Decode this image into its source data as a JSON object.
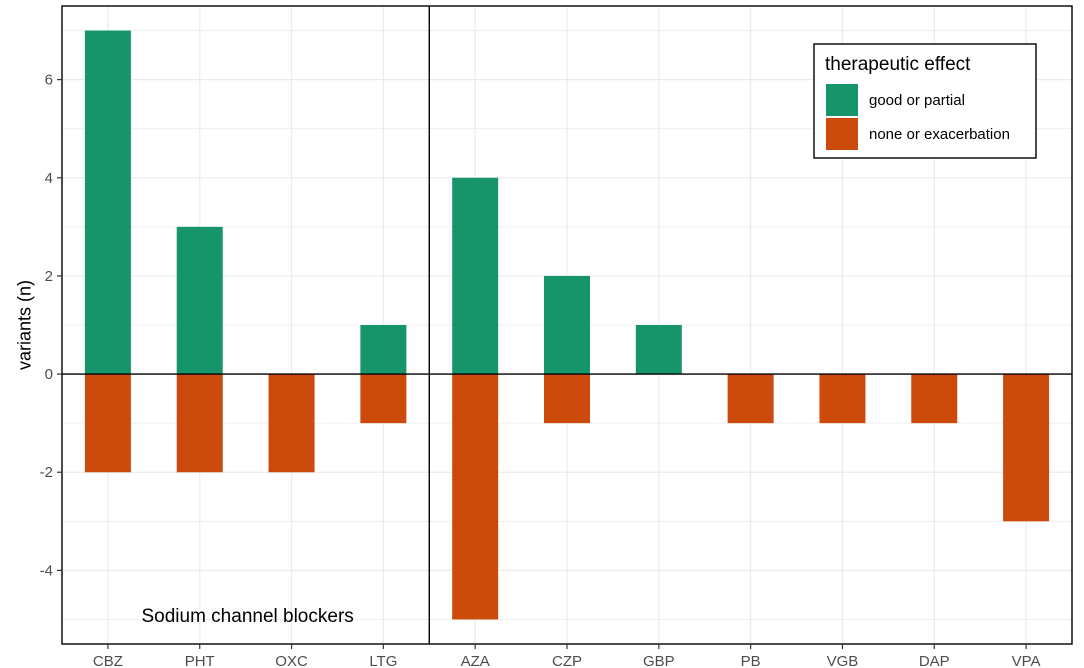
{
  "chart_data": {
    "type": "bar",
    "stacked_diverging": true,
    "categories": [
      "CBZ",
      "PHT",
      "OXC",
      "LTG",
      "AZA",
      "CZP",
      "GBP",
      "PB",
      "VGB",
      "DAP",
      "VPA"
    ],
    "series": [
      {
        "name": "good or partial",
        "color": "#16956a",
        "values": [
          7,
          3,
          0,
          1,
          4,
          2,
          1,
          0,
          0,
          0,
          0
        ]
      },
      {
        "name": "none or exacerbation",
        "color": "#cc4a0b",
        "values": [
          -2,
          -2,
          -2,
          -1,
          -5,
          -1,
          0,
          -1,
          -1,
          -1,
          -3
        ]
      }
    ],
    "xlabel": "",
    "ylabel": "variants (n)",
    "ylim": [
      -5.5,
      7.5
    ],
    "yticks": [
      "6",
      "4",
      "2",
      "0",
      "-2",
      "-4"
    ],
    "ytick_values": [
      6,
      4,
      2,
      0,
      -2,
      -4
    ],
    "grid": true,
    "divider_after_category": "LTG",
    "annotation": "Sodium channel blockers",
    "legend": {
      "title": "therapeutic effect",
      "position": "top-right"
    }
  }
}
